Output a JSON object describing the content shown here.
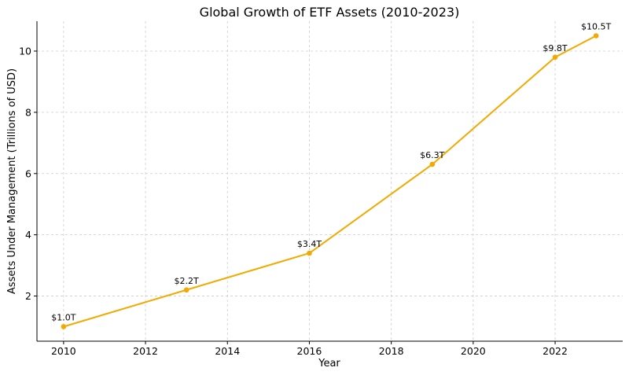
{
  "chart_data": {
    "type": "line",
    "title": "Global Growth of ETF Assets (2010-2023)",
    "xlabel": "Year",
    "ylabel": "Assets Under Management (Trillions of USD)",
    "xlim": [
      2009.35,
      2023.65
    ],
    "ylim": [
      0.525,
      10.975
    ],
    "x_ticks": [
      2010,
      2012,
      2014,
      2016,
      2018,
      2020,
      2022
    ],
    "y_ticks": [
      2,
      4,
      6,
      8,
      10
    ],
    "grid": true,
    "line_color": "#f2a900",
    "series": [
      {
        "x": [
          2010,
          2013,
          2016,
          2019,
          2022,
          2023
        ],
        "y": [
          1.0,
          2.2,
          3.4,
          6.3,
          9.8,
          10.5
        ],
        "labels": [
          "$1.0T",
          "$2.2T",
          "$3.4T",
          "$6.3T",
          "$9.8T",
          "$10.5T"
        ]
      }
    ]
  }
}
